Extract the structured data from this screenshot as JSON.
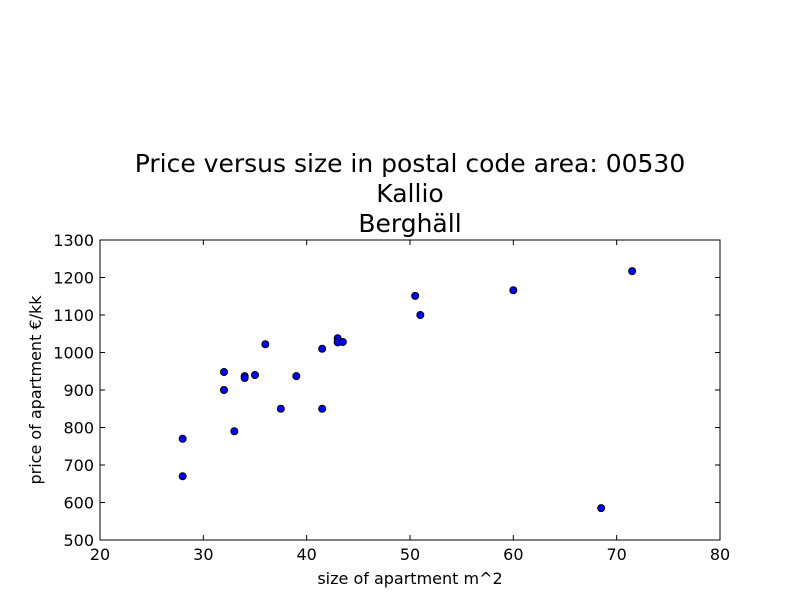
{
  "chart_data": {
    "type": "scatter",
    "title": [
      "Price versus size in postal code area: 00530",
      "Kallio",
      "Berghäll"
    ],
    "xlabel": "size of apartment m^2",
    "ylabel": "price of apartment €/kk",
    "xlim": [
      20,
      80
    ],
    "ylim": [
      500,
      1300
    ],
    "xticks": [
      20,
      30,
      40,
      50,
      60,
      70,
      80
    ],
    "yticks": [
      500,
      600,
      700,
      800,
      900,
      1000,
      1100,
      1200,
      1300
    ],
    "grid": false,
    "marker_color": "#0000ff",
    "marker_edge_color": "#000000",
    "points": [
      {
        "x": 28,
        "y": 770
      },
      {
        "x": 28,
        "y": 670
      },
      {
        "x": 32,
        "y": 948
      },
      {
        "x": 32,
        "y": 900
      },
      {
        "x": 33,
        "y": 790
      },
      {
        "x": 34,
        "y": 937
      },
      {
        "x": 34,
        "y": 932
      },
      {
        "x": 35,
        "y": 940
      },
      {
        "x": 36,
        "y": 1022
      },
      {
        "x": 37.5,
        "y": 850
      },
      {
        "x": 39,
        "y": 937
      },
      {
        "x": 41.5,
        "y": 850
      },
      {
        "x": 41.5,
        "y": 1010
      },
      {
        "x": 43,
        "y": 1038
      },
      {
        "x": 43,
        "y": 1027
      },
      {
        "x": 43.5,
        "y": 1028
      },
      {
        "x": 50.5,
        "y": 1151
      },
      {
        "x": 51,
        "y": 1100
      },
      {
        "x": 60,
        "y": 1166
      },
      {
        "x": 68.5,
        "y": 585
      },
      {
        "x": 71.5,
        "y": 1217
      }
    ]
  }
}
